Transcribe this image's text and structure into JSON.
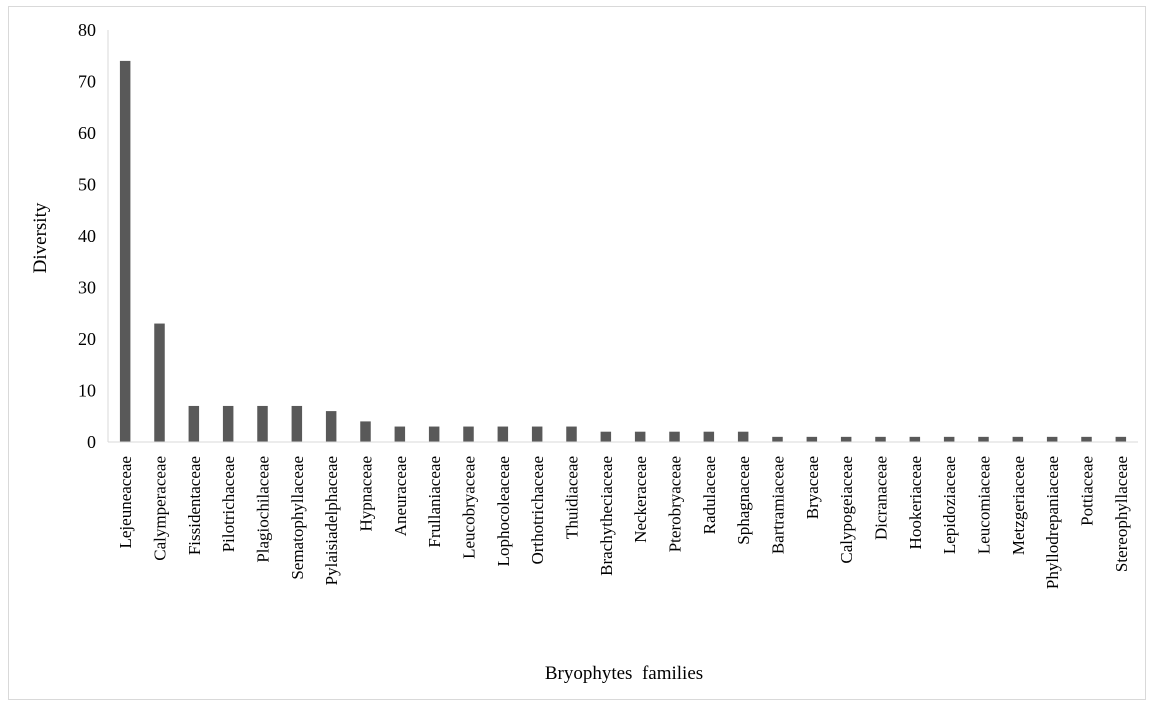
{
  "chart_data": {
    "type": "bar",
    "title": "",
    "xlabel": "Bryophytes  families",
    "ylabel": "Diversity",
    "ylim": [
      0,
      80
    ],
    "yticks": [
      0,
      10,
      20,
      30,
      40,
      50,
      60,
      70,
      80
    ],
    "grid": false,
    "legend": "none",
    "bar_color": "#595959",
    "categories": [
      "Lejeuneaceae",
      "Calymperaceae",
      "Fissidentaceae",
      "Pilotrichaceae",
      "Plagiochilaceae",
      "Sematophyllaceae",
      "Pylaisiadelphaceae",
      "Hypnaceae",
      "Aneuraceae",
      "Frullaniaceae",
      "Leucobryaceae",
      "Lophocoleaceae",
      "Orthotrichaceae",
      "Thuidiaceae",
      "Brachytheciaceae",
      "Neckeraceae",
      "Pterobryaceae",
      "Radulaceae",
      "Sphagnaceae",
      "Bartramiaceae",
      "Bryaceae",
      "Calypogeiaceae",
      "Dicranaceae",
      "Hookeriaceae",
      "Lepidoziaceae",
      "Leucomiaceae",
      "Metzgeriaceae",
      "Phyllodrepaniaceae",
      "Pottiaceae",
      "Stereophyllaceae"
    ],
    "values": [
      74,
      23,
      7,
      7,
      7,
      7,
      6,
      4,
      3,
      3,
      3,
      3,
      3,
      3,
      2,
      2,
      2,
      2,
      2,
      1,
      1,
      1,
      1,
      1,
      1,
      1,
      1,
      1,
      1,
      1
    ]
  }
}
